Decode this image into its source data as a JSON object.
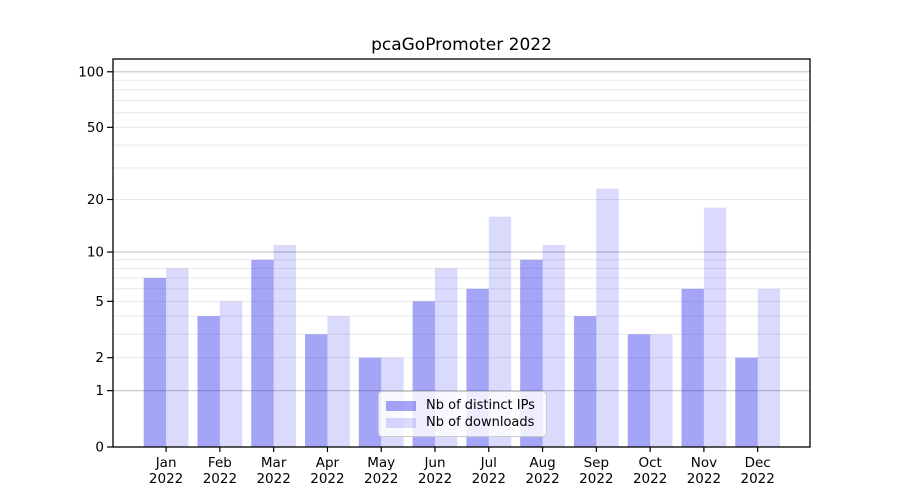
{
  "chart_data": {
    "type": "bar",
    "title": "pcaGoPromoter 2022",
    "categories": [
      "Jan\n2022",
      "Feb\n2022",
      "Mar\n2022",
      "Apr\n2022",
      "May\n2022",
      "Jun\n2022",
      "Jul\n2022",
      "Aug\n2022",
      "Sep\n2022",
      "Oct\n2022",
      "Nov\n2022",
      "Dec\n2022"
    ],
    "series": [
      {
        "name": "Nb of distinct IPs",
        "values": [
          7,
          4,
          9,
          3,
          2,
          5,
          6,
          9,
          4,
          3,
          6,
          2
        ],
        "color": "rgba(30,30,235,0.40)"
      },
      {
        "name": "Nb of downloads",
        "values": [
          8,
          5,
          11,
          4,
          2,
          8,
          16,
          11,
          23,
          3,
          18,
          6
        ],
        "color": "rgba(30,30,235,0.165)"
      }
    ],
    "xlabel": "",
    "ylabel": "",
    "yscale": "log1p",
    "ylim": [
      0,
      116
    ],
    "ytick_values": [
      0,
      1,
      2,
      5,
      10,
      20,
      50,
      100
    ],
    "ytick_labels": [
      "0",
      "1",
      "2",
      "5",
      "10",
      "20",
      "50",
      "100"
    ],
    "major_grid_values": [
      1,
      10,
      100
    ],
    "minor_grid_values": [
      2,
      3,
      4,
      5,
      6,
      7,
      8,
      9,
      20,
      30,
      40,
      50,
      60,
      70,
      80,
      90
    ],
    "grid": true,
    "legend_position": "lower center",
    "colors": {
      "major_grid": "#c4c4c4",
      "minor_grid": "#e9e9e9",
      "spine": "#000000",
      "text": "#000000",
      "background": "#ffffff"
    }
  }
}
